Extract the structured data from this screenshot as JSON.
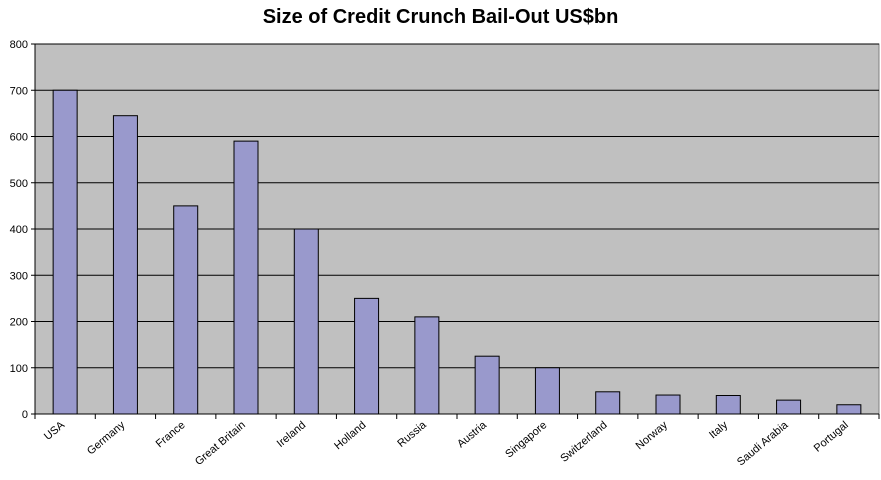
{
  "chart_data": {
    "type": "bar",
    "title": "Size of Credit Crunch Bail-Out US$bn",
    "xlabel": "",
    "ylabel": "",
    "categories": [
      "USA",
      "Germany",
      "France",
      "Great Britain",
      "Ireland",
      "Holland",
      "Russia",
      "Austria",
      "Singapore",
      "Switzerland",
      "Norway",
      "Italy",
      "Saudi Arabia",
      "Portugal"
    ],
    "series": [
      {
        "values": [
          700,
          645,
          450,
          590,
          400,
          250,
          210,
          125,
          100,
          48,
          41,
          40,
          30,
          20
        ]
      }
    ],
    "ylim": [
      0,
      800
    ],
    "yticks": [
      0,
      100,
      200,
      300,
      400,
      500,
      600,
      700,
      800
    ],
    "grid": true,
    "legend": "none",
    "colors": {
      "bar_fill": "#9999cc",
      "bar_stroke": "#000000",
      "plot_background": "#c0c0c0",
      "gridline": "#000000"
    }
  }
}
